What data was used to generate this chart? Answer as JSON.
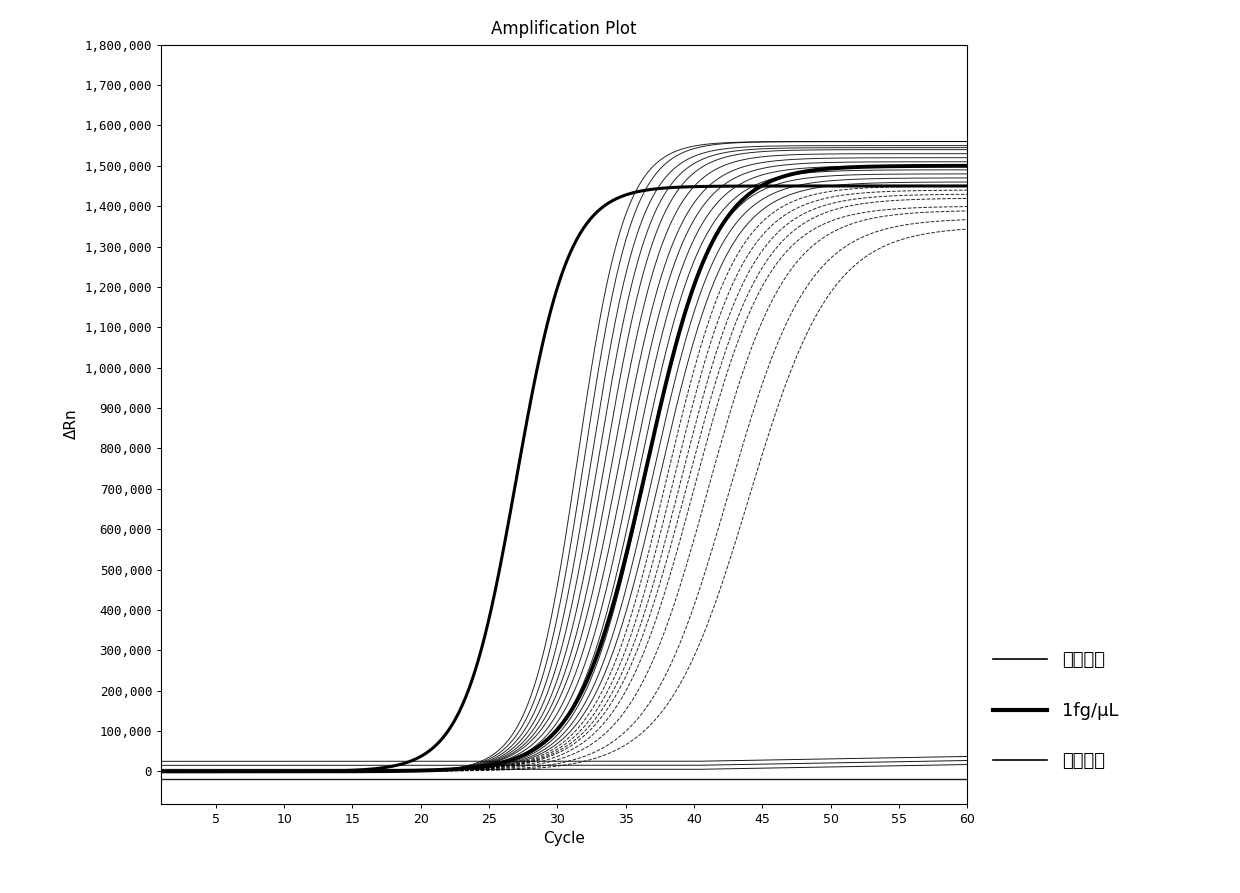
{
  "title": "Amplification Plot",
  "xlabel": "Cycle",
  "ylabel": "ΔRn",
  "xlim": [
    1,
    60
  ],
  "ylim": [
    -80000,
    1800000
  ],
  "xticks": [
    5,
    10,
    15,
    20,
    25,
    30,
    35,
    40,
    45,
    50,
    55,
    60
  ],
  "yticks": [
    0,
    100000,
    200000,
    300000,
    400000,
    500000,
    600000,
    700000,
    800000,
    900000,
    1000000,
    1100000,
    1200000,
    1300000,
    1400000,
    1500000,
    1600000,
    1700000,
    1800000
  ],
  "ytick_labels": [
    "0",
    "100,000",
    "200,000",
    "300,000",
    "400,000",
    "500,000",
    "600,000",
    "700,000",
    "800,000",
    "900,000",
    "1,000,000",
    "1,100,000",
    "1,200,000",
    "1,300,000",
    "1,400,000",
    "1,500,000",
    "1,600,000",
    "1,700,000",
    "1,800,000"
  ],
  "positive_control": {
    "midpoint": 27.0,
    "L": 1450000,
    "k": 0.52,
    "color": "#000000",
    "linewidth": 2.2
  },
  "fg_per_ul": {
    "midpoint": 36.5,
    "L": 1500000,
    "k": 0.4,
    "color": "#000000",
    "linewidth": 2.8
  },
  "sample_curves": [
    {
      "midpoint": 31.5,
      "L": 1560000,
      "k": 0.58,
      "lw": 0.7,
      "ls": "-"
    },
    {
      "midpoint": 32.0,
      "L": 1560000,
      "k": 0.56,
      "lw": 0.7,
      "ls": "-"
    },
    {
      "midpoint": 32.5,
      "L": 1550000,
      "k": 0.54,
      "lw": 0.7,
      "ls": "-"
    },
    {
      "midpoint": 33.0,
      "L": 1545000,
      "k": 0.52,
      "lw": 0.7,
      "ls": "-"
    },
    {
      "midpoint": 33.5,
      "L": 1540000,
      "k": 0.5,
      "lw": 0.7,
      "ls": "-"
    },
    {
      "midpoint": 34.0,
      "L": 1530000,
      "k": 0.48,
      "lw": 0.7,
      "ls": "-"
    },
    {
      "midpoint": 34.5,
      "L": 1520000,
      "k": 0.46,
      "lw": 0.7,
      "ls": "-"
    },
    {
      "midpoint": 35.0,
      "L": 1510000,
      "k": 0.45,
      "lw": 0.7,
      "ls": "-"
    },
    {
      "midpoint": 35.5,
      "L": 1500000,
      "k": 0.44,
      "lw": 0.7,
      "ls": "-"
    },
    {
      "midpoint": 36.0,
      "L": 1490000,
      "k": 0.43,
      "lw": 0.7,
      "ls": "-"
    },
    {
      "midpoint": 36.5,
      "L": 1480000,
      "k": 0.42,
      "lw": 0.7,
      "ls": "-"
    },
    {
      "midpoint": 37.0,
      "L": 1470000,
      "k": 0.41,
      "lw": 0.7,
      "ls": "-"
    },
    {
      "midpoint": 37.5,
      "L": 1460000,
      "k": 0.4,
      "lw": 0.7,
      "ls": "-"
    },
    {
      "midpoint": 38.0,
      "L": 1450000,
      "k": 0.39,
      "lw": 0.7,
      "ls": "--"
    },
    {
      "midpoint": 38.5,
      "L": 1440000,
      "k": 0.38,
      "lw": 0.7,
      "ls": "--"
    },
    {
      "midpoint": 39.0,
      "L": 1430000,
      "k": 0.37,
      "lw": 0.7,
      "ls": "--"
    },
    {
      "midpoint": 39.5,
      "L": 1420000,
      "k": 0.36,
      "lw": 0.7,
      "ls": "--"
    },
    {
      "midpoint": 40.0,
      "L": 1400000,
      "k": 0.36,
      "lw": 0.7,
      "ls": "--"
    },
    {
      "midpoint": 41.0,
      "L": 1390000,
      "k": 0.35,
      "lw": 0.7,
      "ls": "--"
    },
    {
      "midpoint": 42.5,
      "L": 1370000,
      "k": 0.34,
      "lw": 0.7,
      "ls": "--"
    },
    {
      "midpoint": 44.0,
      "L": 1350000,
      "k": 0.33,
      "lw": 0.7,
      "ls": "--"
    }
  ],
  "negative_flat_values": [
    -20000,
    5000,
    15000,
    25000
  ],
  "negative_flat_lw": [
    1.0,
    0.7,
    0.7,
    0.7
  ],
  "legend_labels": [
    "阳性对照",
    "1fg/μL",
    "阴性对照"
  ],
  "legend_lw_thin": 1.2,
  "legend_lw_thick": 3.0,
  "background_color": "#ffffff",
  "axes_color": "#000000",
  "figsize": [
    12.4,
    8.93
  ],
  "dpi": 100
}
